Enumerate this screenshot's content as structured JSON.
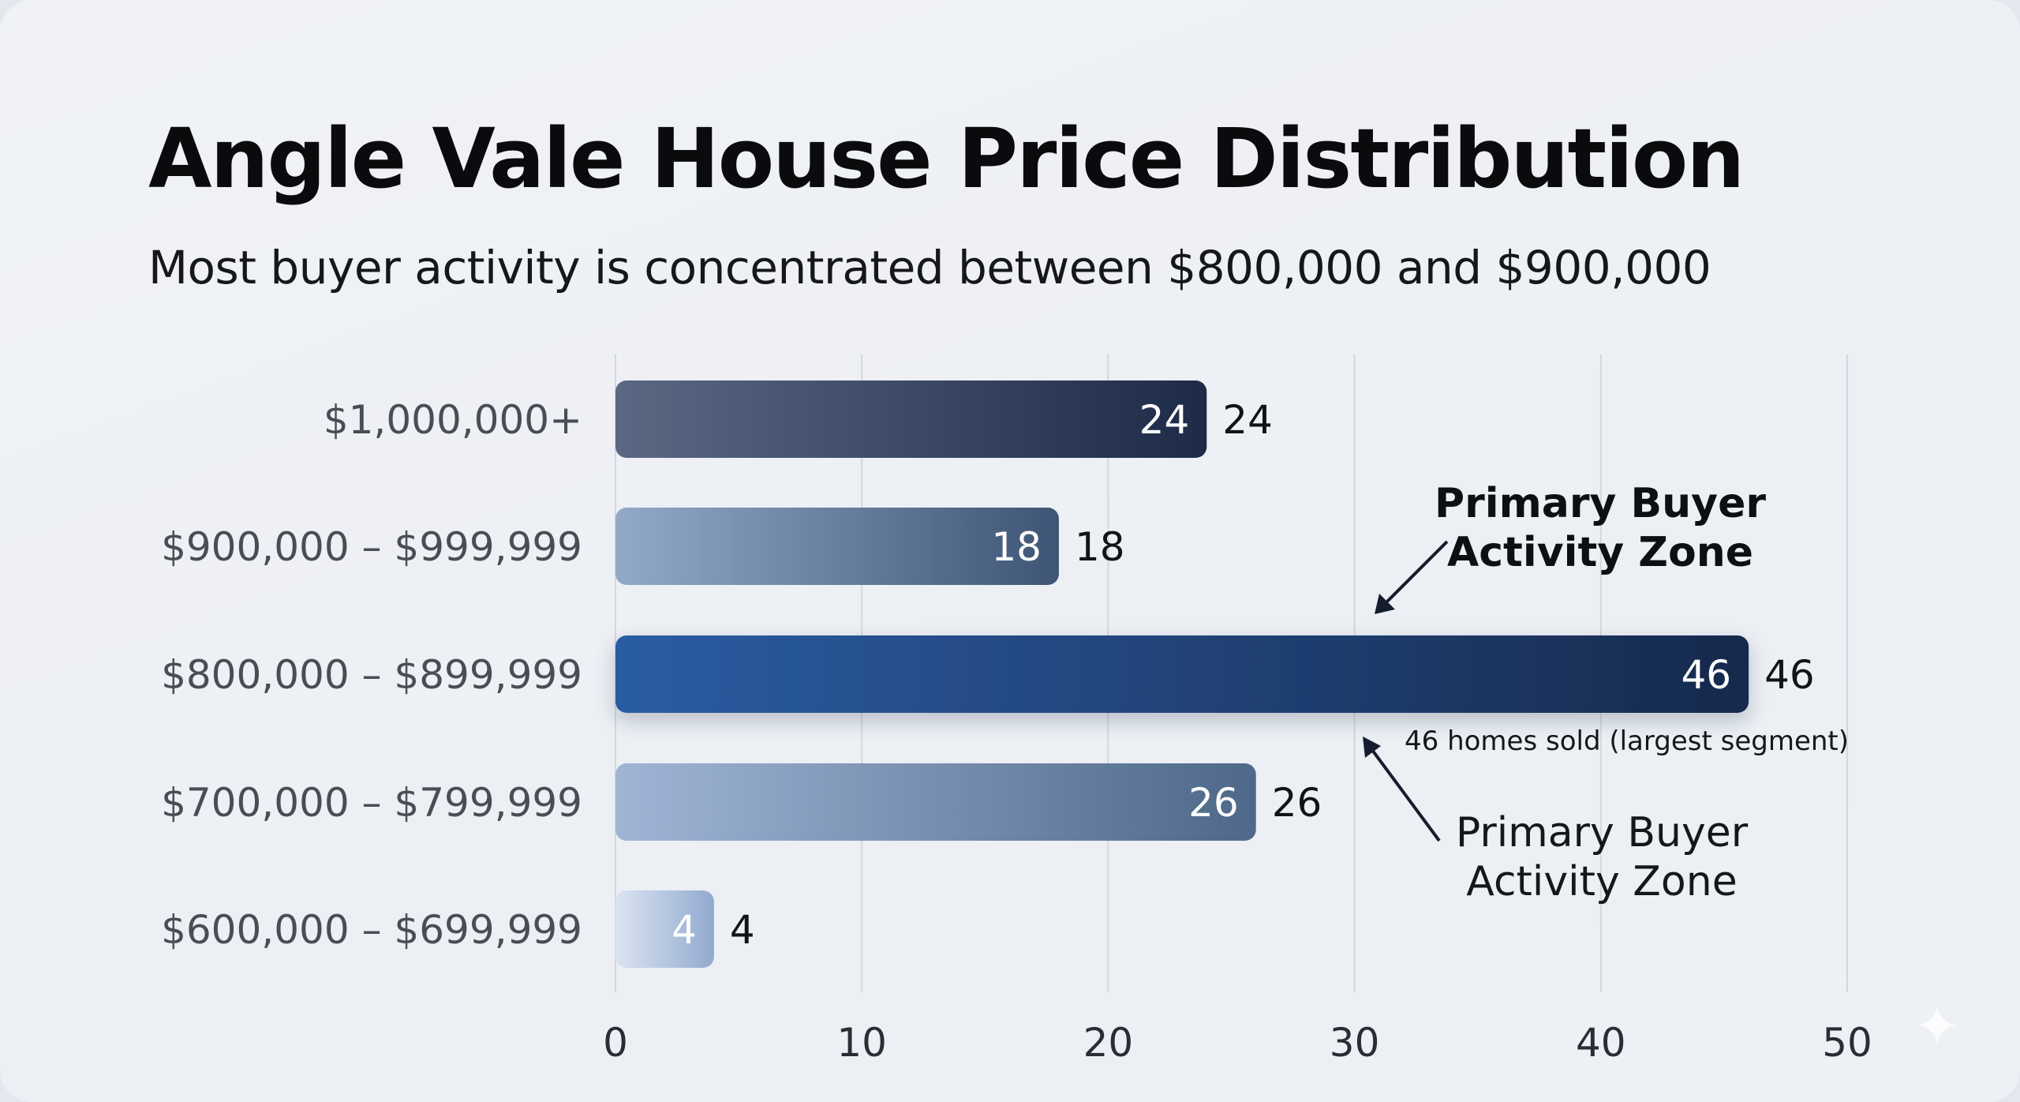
{
  "title": "Angle Vale House Price Distribution",
  "subtitle": "Most buyer activity is concentrated between $800,000 and $900,000",
  "chart_data": {
    "type": "bar",
    "orientation": "horizontal",
    "categories": [
      "$1,000,000+",
      "$900,000 – $999,999",
      "$800,000 – $899,999",
      "$700,000 – $799,999",
      "$600,000 – $699,999"
    ],
    "values": [
      24,
      18,
      46,
      26,
      4
    ],
    "xlim": [
      0,
      50
    ],
    "xticks": [
      "0",
      "10",
      "20",
      "30",
      "40",
      "50"
    ],
    "grid": "vertical",
    "highlighted_category": "$800,000 – $899,999",
    "bar_colors": [
      [
        "#5b6883",
        "#1d2b48"
      ],
      [
        "#93a9c8",
        "#3e5576"
      ],
      [
        "#2b5ca3",
        "#172a4d"
      ],
      [
        "#a0b5d6",
        "#4e6889"
      ],
      [
        "#dbe4f2",
        "#92aad0"
      ]
    ],
    "annotations": [
      {
        "text_lines": [
          "Primary Buyer",
          "Activity Zone"
        ],
        "bold": true
      },
      {
        "text": "46 homes sold (largest segment)"
      },
      {
        "text_lines": [
          "Primary Buyer",
          "Activity Zone"
        ],
        "bold": false
      }
    ]
  },
  "icons": {
    "watermark": "sparkle-icon"
  }
}
